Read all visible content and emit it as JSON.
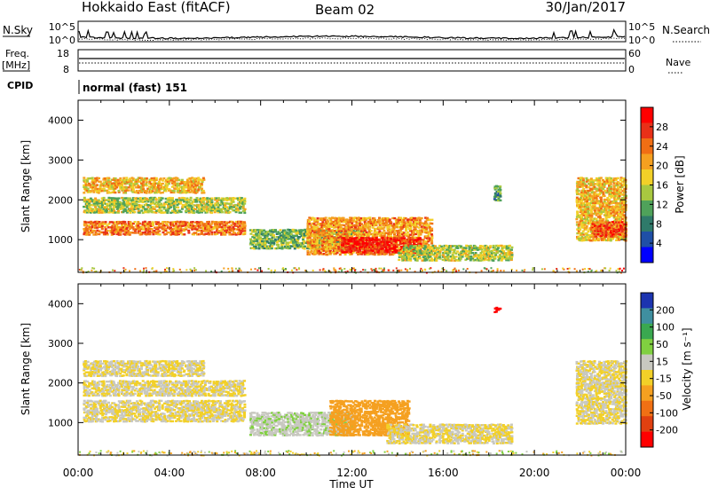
{
  "header": {
    "station": "Hokkaido East (fitACF)",
    "beam": "Beam 02",
    "date": "30/Jan/2017"
  },
  "top_panels": {
    "nsky_label": "N.Sky",
    "nsearch_label": "N.Search",
    "noise_ticks": [
      "10^5",
      "10^0"
    ],
    "freq_label_1": "Freq.",
    "freq_label_2": "[MHz]",
    "freq_ticks": [
      "18",
      "8"
    ],
    "nave_label": "Nave",
    "nave_ticks": [
      "60",
      "0"
    ],
    "cpid_label": "CPID",
    "cpid_value": "normal (fast) 151"
  },
  "x_axis": {
    "label": "Time UT",
    "ticks": [
      "00:00",
      "04:00",
      "08:00",
      "12:00",
      "16:00",
      "20:00",
      "00:00"
    ]
  },
  "colors": {
    "power_scale": [
      "#0000ff",
      "#1f4fa6",
      "#2f7a6a",
      "#4fa25a",
      "#a8c840",
      "#f2d028",
      "#f5a020",
      "#f06e14",
      "#e83018",
      "#ff0000"
    ],
    "velocity_scale": [
      "#1c34b0",
      "#3f8fa0",
      "#3aa850",
      "#80d040",
      "#c8c8c0",
      "#f2d028",
      "#f5a020",
      "#f07014",
      "#e04010",
      "#ff0000"
    ]
  },
  "chart_data": [
    {
      "type": "heatmap",
      "title": "Power",
      "ylabel": "Slant Range [km]",
      "xlabel": "",
      "xlim": [
        0,
        24
      ],
      "ylim": [
        180,
        4500
      ],
      "y_ticks": [
        "4000",
        "3000",
        "2000",
        "1000"
      ],
      "colorbar": {
        "label": "Power [dB]",
        "ticks": [
          "28",
          "24",
          "20",
          "16",
          "12",
          "8",
          "4"
        ],
        "range": [
          0,
          30
        ]
      },
      "regions": [
        {
          "t": [
            0.2,
            7.3
          ],
          "r": [
            1150,
            1500
          ],
          "value": 22
        },
        {
          "t": [
            0.2,
            7.3
          ],
          "r": [
            1700,
            2100
          ],
          "value": 14
        },
        {
          "t": [
            0.2,
            5.5
          ],
          "r": [
            2200,
            2600
          ],
          "value": 18
        },
        {
          "t": [
            7.5,
            12.5
          ],
          "r": [
            800,
            1300
          ],
          "value": 12
        },
        {
          "t": [
            10.0,
            15.5
          ],
          "r": [
            650,
            1600
          ],
          "value": 20
        },
        {
          "t": [
            11.5,
            15.0
          ],
          "r": [
            700,
            1100
          ],
          "value": 27
        },
        {
          "t": [
            14.0,
            19.0
          ],
          "r": [
            500,
            900
          ],
          "value": 14
        },
        {
          "t": [
            18.2,
            18.5
          ],
          "r": [
            2000,
            2400
          ],
          "value": 10
        },
        {
          "t": [
            21.8,
            24.0
          ],
          "r": [
            1000,
            2600
          ],
          "value": 18
        },
        {
          "t": [
            22.5,
            24.0
          ],
          "r": [
            1100,
            1500
          ],
          "value": 24
        }
      ]
    },
    {
      "type": "heatmap",
      "title": "Velocity",
      "ylabel": "Slant Range [km]",
      "xlabel": "Time UT",
      "xlim": [
        0,
        24
      ],
      "ylim": [
        180,
        4500
      ],
      "y_ticks": [
        "4000",
        "3000",
        "2000",
        "1000"
      ],
      "colorbar": {
        "label": "Velocity [m s⁻¹]",
        "ticks": [
          "200",
          "100",
          "50",
          "15",
          "-15",
          "-50",
          "-100",
          "-200"
        ],
        "range": [
          -250,
          250
        ]
      },
      "regions": [
        {
          "t": [
            0.2,
            7.3
          ],
          "r": [
            1050,
            1600
          ],
          "value": 0
        },
        {
          "t": [
            0.2,
            7.3
          ],
          "r": [
            1700,
            2100
          ],
          "value": 0
        },
        {
          "t": [
            0.2,
            5.5
          ],
          "r": [
            2200,
            2600
          ],
          "value": 0
        },
        {
          "t": [
            7.5,
            12.0
          ],
          "r": [
            700,
            1300
          ],
          "value": 40
        },
        {
          "t": [
            11.0,
            14.5
          ],
          "r": [
            700,
            1600
          ],
          "value": -80
        },
        {
          "t": [
            13.5,
            19.0
          ],
          "r": [
            500,
            1000
          ],
          "value": 0
        },
        {
          "t": [
            18.2,
            18.5
          ],
          "r": [
            3800,
            3950
          ],
          "value": -220
        },
        {
          "t": [
            21.8,
            24.0
          ],
          "r": [
            1000,
            2600
          ],
          "value": 0
        }
      ]
    }
  ]
}
